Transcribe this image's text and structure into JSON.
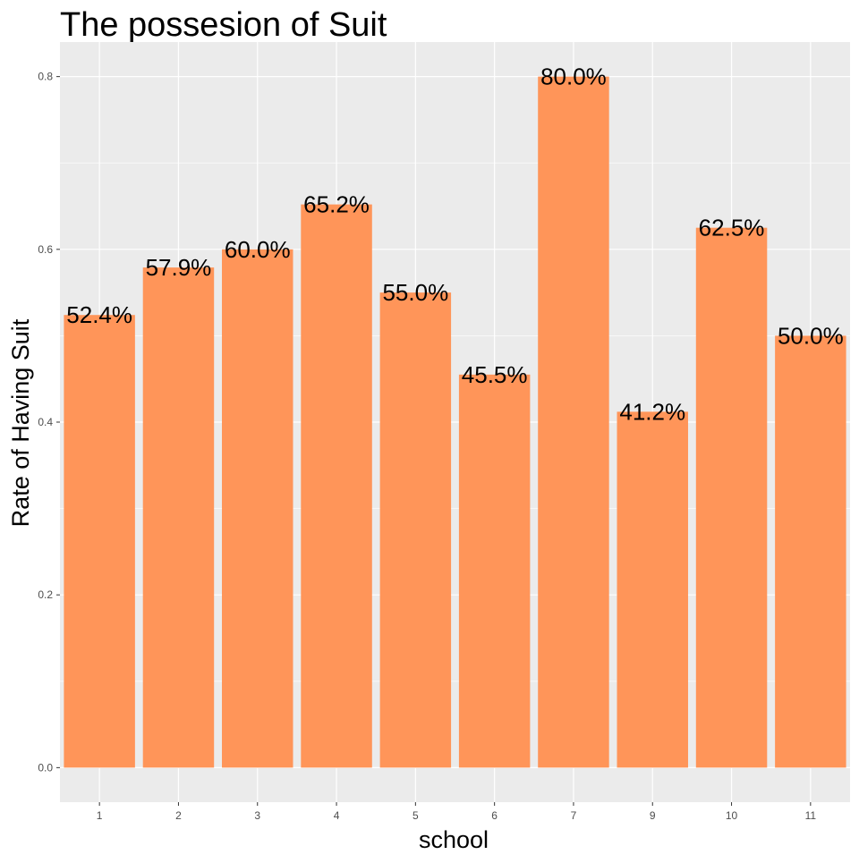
{
  "chart_data": {
    "type": "bar",
    "title": "The possesion of Suit",
    "xlabel": "school",
    "ylabel": "Rate of Having Suit",
    "categories": [
      "1",
      "2",
      "3",
      "4",
      "5",
      "6",
      "7",
      "9",
      "10",
      "11"
    ],
    "values": [
      0.524,
      0.579,
      0.6,
      0.652,
      0.55,
      0.455,
      0.8,
      0.412,
      0.625,
      0.5
    ],
    "data_labels": [
      "52.4%",
      "57.9%",
      "60.0%",
      "65.2%",
      "55.0%",
      "45.5%",
      "80.0%",
      "41.2%",
      "62.5%",
      "50.0%"
    ],
    "ylim": [
      -0.04,
      0.84
    ],
    "yticks": [
      0.0,
      0.2,
      0.4,
      0.6,
      0.8
    ],
    "ytick_labels": [
      "0.0",
      "0.2",
      "0.4",
      "0.6",
      "0.8"
    ],
    "grid": true,
    "legend": "none",
    "colors": {
      "bar": "#ff9559",
      "panel": "#ebebeb",
      "grid_major": "#ffffff",
      "tick_text": "#4d4d4d",
      "tick_mark": "#333333"
    }
  }
}
